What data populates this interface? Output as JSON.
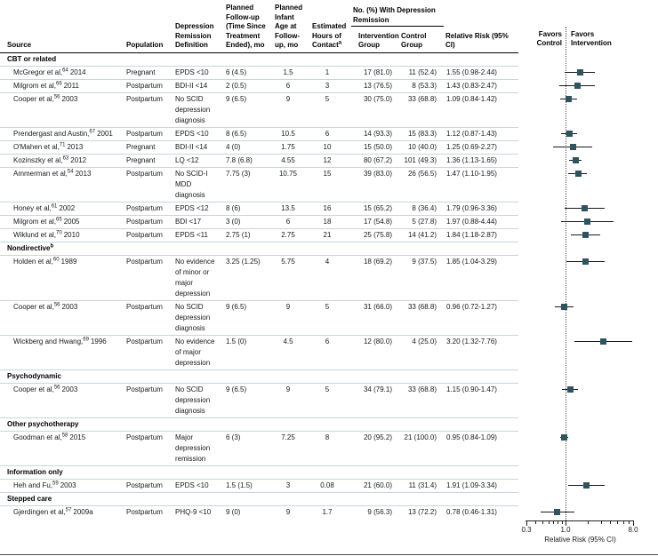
{
  "header": {
    "col_source": "Source",
    "col_population": "Population",
    "col_definition": "Depression Remission Definition",
    "col_followup": "Planned Follow-up (Time Since Treatment Ended), mo",
    "col_infant_age": "Planned Infant Age at Follow-up, mo",
    "col_hours": "Estimated Hours of Contact",
    "col_hours_sup": "a",
    "col_group_span": "No. (%) With Depression Remission",
    "col_intervention": "Intervention Group",
    "col_control": "Control Group",
    "col_rr": "Relative Risk (95% CI)",
    "favors_control": "Favors Control",
    "favors_intervention": "Favors Intervention"
  },
  "sections": [
    {
      "label": "CBT or related",
      "sup": "",
      "rows": [
        {
          "source": "McGregor et al,",
          "ref": "64",
          "year": "2014",
          "population": "Pregnant",
          "definition": "EPDS <10",
          "followup": "6 (4.5)",
          "infant_age": "1.5",
          "hours": "1",
          "intervention": "17 (81.0)",
          "control": "11 (52.4)",
          "rr_text": "1.55 (0.98-2.44)"
        },
        {
          "source": "Milgrom et al,",
          "ref": "66",
          "year": "2011",
          "population": "Postpartum",
          "definition": "BDI-II <14",
          "followup": "2 (0.5)",
          "infant_age": "6",
          "hours": "3",
          "intervention": "13 (76.5)",
          "control": "8 (53.3)",
          "rr_text": "1.43 (0.83-2.47)"
        },
        {
          "source": "Cooper et al,",
          "ref": "56",
          "year": "2003",
          "population": "Postpartum",
          "definition": "No SCID depression diagnosis",
          "followup": "9 (6.5)",
          "infant_age": "9",
          "hours": "5",
          "intervention": "30 (75.0)",
          "control": "33 (68.8)",
          "rr_text": "1.09 (0.84-1.42)"
        },
        {
          "source": "Prendergast and Austin,",
          "ref": "67",
          "year": "2001",
          "population": "Postpartum",
          "definition": "EPDS <10",
          "followup": "8 (6.5)",
          "infant_age": "10.5",
          "hours": "6",
          "intervention": "14 (93.3)",
          "control": "15 (83.3)",
          "rr_text": "1.12 (0.87-1.43)"
        },
        {
          "source": "O'Mahen et al,",
          "ref": "71",
          "year": "2013",
          "population": "Pregnant",
          "definition": "BDI-II <14",
          "followup": "4 (0)",
          "infant_age": "1.75",
          "hours": "10",
          "intervention": "15 (50.0)",
          "control": "10 (40.0)",
          "rr_text": "1.25 (0.69-2.27)"
        },
        {
          "source": "Kozinszky et al,",
          "ref": "63",
          "year": "2012",
          "population": "Pregnant",
          "definition": "LQ <12",
          "followup": "7.8 (6.8)",
          "infant_age": "4.55",
          "hours": "12",
          "intervention": "80 (67.2)",
          "control": "101 (49.3)",
          "rr_text": "1.36 (1.13-1.65)"
        },
        {
          "source": "Ammerman et al,",
          "ref": "54",
          "year": "2013",
          "population": "Postpartum",
          "definition": "No SCID-I MDD diagnosis",
          "followup": "7.75 (3)",
          "infant_age": "10.75",
          "hours": "15",
          "intervention": "39 (83.0)",
          "control": "26 (56.5)",
          "rr_text": "1.47 (1.10-1.95)"
        },
        {
          "source": "Honey et al,",
          "ref": "61",
          "year": "2002",
          "population": "Postpartum",
          "definition": "EPDS <12",
          "followup": "8 (6)",
          "infant_age": "13.5",
          "hours": "16",
          "intervention": "15 (65.2)",
          "control": "8 (36.4)",
          "rr_text": "1.79 (0.96-3.36)"
        },
        {
          "source": "Milgrom et al,",
          "ref": "65",
          "year": "2005",
          "population": "Postpartum",
          "definition": "BDI <17",
          "followup": "3 (0)",
          "infant_age": "6",
          "hours": "18",
          "intervention": "17 (54.8)",
          "control": "5 (27.8)",
          "rr_text": "1.97 (0.88-4.44)"
        },
        {
          "source": "Wiklund et al,",
          "ref": "70",
          "year": "2010",
          "population": "Postpartum",
          "definition": "EPDS <11",
          "followup": "2.75 (1)",
          "infant_age": "2.75",
          "hours": "21",
          "intervention": "25 (75.8)",
          "control": "14 (41.2)",
          "rr_text": "1.84 (1.18-2.87)"
        }
      ]
    },
    {
      "label": "Nondirective",
      "sup": "b",
      "rows": [
        {
          "source": "Holden et al,",
          "ref": "60",
          "year": "1989",
          "population": "Postpartum",
          "definition": "No evidence of minor or major depression",
          "followup": "3.25 (1.25)",
          "infant_age": "5.75",
          "hours": "4",
          "intervention": "18 (69.2)",
          "control": "9 (37.5)",
          "rr_text": "1.85 (1.04-3.29)"
        },
        {
          "source": "Cooper et al,",
          "ref": "56",
          "year": "2003",
          "population": "Postpartum",
          "definition": "No SCID depression diagnosis",
          "followup": "9 (6.5)",
          "infant_age": "9",
          "hours": "5",
          "intervention": "31 (66.0)",
          "control": "33 (68.8)",
          "rr_text": "0.96 (0.72-1.27)"
        },
        {
          "source": "Wickberg and Hwang,",
          "ref": "69",
          "year": "1996",
          "population": "Postpartum",
          "definition": "No evidence of major depression",
          "followup": "1.5 (0)",
          "infant_age": "4.5",
          "hours": "6",
          "intervention": "12 (80.0)",
          "control": "4 (25.0)",
          "rr_text": "3.20 (1.32-7.76)"
        }
      ]
    },
    {
      "label": "Psychodynamic",
      "sup": "",
      "rows": [
        {
          "source": "Cooper et al,",
          "ref": "56",
          "year": "2003",
          "population": "Postpartum",
          "definition": "No SCID depression diagnosis",
          "followup": "9 (6.5)",
          "infant_age": "9",
          "hours": "5",
          "intervention": "34 (79.1)",
          "control": "33 (68.8)",
          "rr_text": "1.15 (0.90-1.47)"
        }
      ]
    },
    {
      "label": "Other psychotherapy",
      "sup": "",
      "rows": [
        {
          "source": "Goodman et al,",
          "ref": "58",
          "year": "2015",
          "population": "Postpartum",
          "definition": "Major depression remission",
          "followup": "6 (3)",
          "infant_age": "7.25",
          "hours": "8",
          "intervention": "20 (95.2)",
          "control": "21 (100.0)",
          "rr_text": "0.95 (0.84-1.09)"
        }
      ]
    },
    {
      "label": "Information only",
      "sup": "",
      "rows": [
        {
          "source": "Heh and Fu,",
          "ref": "59",
          "year": "2003",
          "population": "Postpartum",
          "definition": "EPDS <10",
          "followup": "1.5 (1.5)",
          "infant_age": "3",
          "hours": "0.08",
          "intervention": "21 (60.0)",
          "control": "11 (31.4)",
          "rr_text": "1.91 (1.09-3.34)"
        }
      ]
    },
    {
      "label": "Stepped care",
      "sup": "",
      "rows": [
        {
          "source": "Gjerdingen et al,",
          "ref": "57",
          "year": "2009a",
          "population": "Postpartum",
          "definition": "PHQ-9 <10",
          "followup": "9 (0)",
          "infant_age": "9",
          "hours": "1.7",
          "intervention": "9 (56.3)",
          "control": "13 (72.2)",
          "rr_text": "0.78 (0.46-1.31)"
        }
      ]
    }
  ],
  "chart_data": {
    "type": "forest",
    "x_axis": {
      "scale": "log",
      "min": 0.3,
      "max": 8.0,
      "label": "Relative Risk (95% CI)",
      "reference_line": 1.0,
      "ticks": [
        {
          "value": 0.3,
          "label": "0.3"
        },
        {
          "value": 1.0,
          "label": "1.0"
        },
        {
          "value": 8.0,
          "label": "8.0"
        }
      ],
      "minor_ticks": [
        0.4,
        0.5,
        0.6,
        0.7,
        0.8,
        0.9,
        2,
        3,
        4,
        5,
        6,
        7
      ]
    },
    "points": [
      {
        "label": "McGregor et al, 2014",
        "rr": 1.55,
        "low": 0.98,
        "high": 2.44
      },
      {
        "label": "Milgrom et al, 2011",
        "rr": 1.43,
        "low": 0.83,
        "high": 2.47
      },
      {
        "label": "Cooper et al, 2003 (CBT)",
        "rr": 1.09,
        "low": 0.84,
        "high": 1.42
      },
      {
        "label": "Prendergast and Austin, 2001",
        "rr": 1.12,
        "low": 0.87,
        "high": 1.43
      },
      {
        "label": "O'Mahen et al, 2013",
        "rr": 1.25,
        "low": 0.69,
        "high": 2.27
      },
      {
        "label": "Kozinszky et al, 2012",
        "rr": 1.36,
        "low": 1.13,
        "high": 1.65
      },
      {
        "label": "Ammerman et al, 2013",
        "rr": 1.47,
        "low": 1.1,
        "high": 1.95
      },
      {
        "label": "Honey et al, 2002",
        "rr": 1.79,
        "low": 0.96,
        "high": 3.36
      },
      {
        "label": "Milgrom et al, 2005",
        "rr": 1.97,
        "low": 0.88,
        "high": 4.44
      },
      {
        "label": "Wiklund et al, 2010",
        "rr": 1.84,
        "low": 1.18,
        "high": 2.87
      },
      {
        "label": "Holden et al, 1989",
        "rr": 1.85,
        "low": 1.04,
        "high": 3.29
      },
      {
        "label": "Cooper et al, 2003 (Nondirective)",
        "rr": 0.96,
        "low": 0.72,
        "high": 1.27
      },
      {
        "label": "Wickberg and Hwang, 1996",
        "rr": 3.2,
        "low": 1.32,
        "high": 7.76
      },
      {
        "label": "Cooper et al, 2003 (Psychodynamic)",
        "rr": 1.15,
        "low": 0.9,
        "high": 1.47
      },
      {
        "label": "Goodman et al, 2015",
        "rr": 0.95,
        "low": 0.84,
        "high": 1.09
      },
      {
        "label": "Heh and Fu, 2003",
        "rr": 1.91,
        "low": 1.09,
        "high": 3.34
      },
      {
        "label": "Gjerdingen et al, 2009a",
        "rr": 0.78,
        "low": 0.46,
        "high": 1.31
      }
    ]
  },
  "colors": {
    "marker": "#2f5461",
    "ci_line": "#1a1a1a",
    "separator": "#ccd4d9",
    "dark_rule": "#000000",
    "text": "#17191c"
  }
}
